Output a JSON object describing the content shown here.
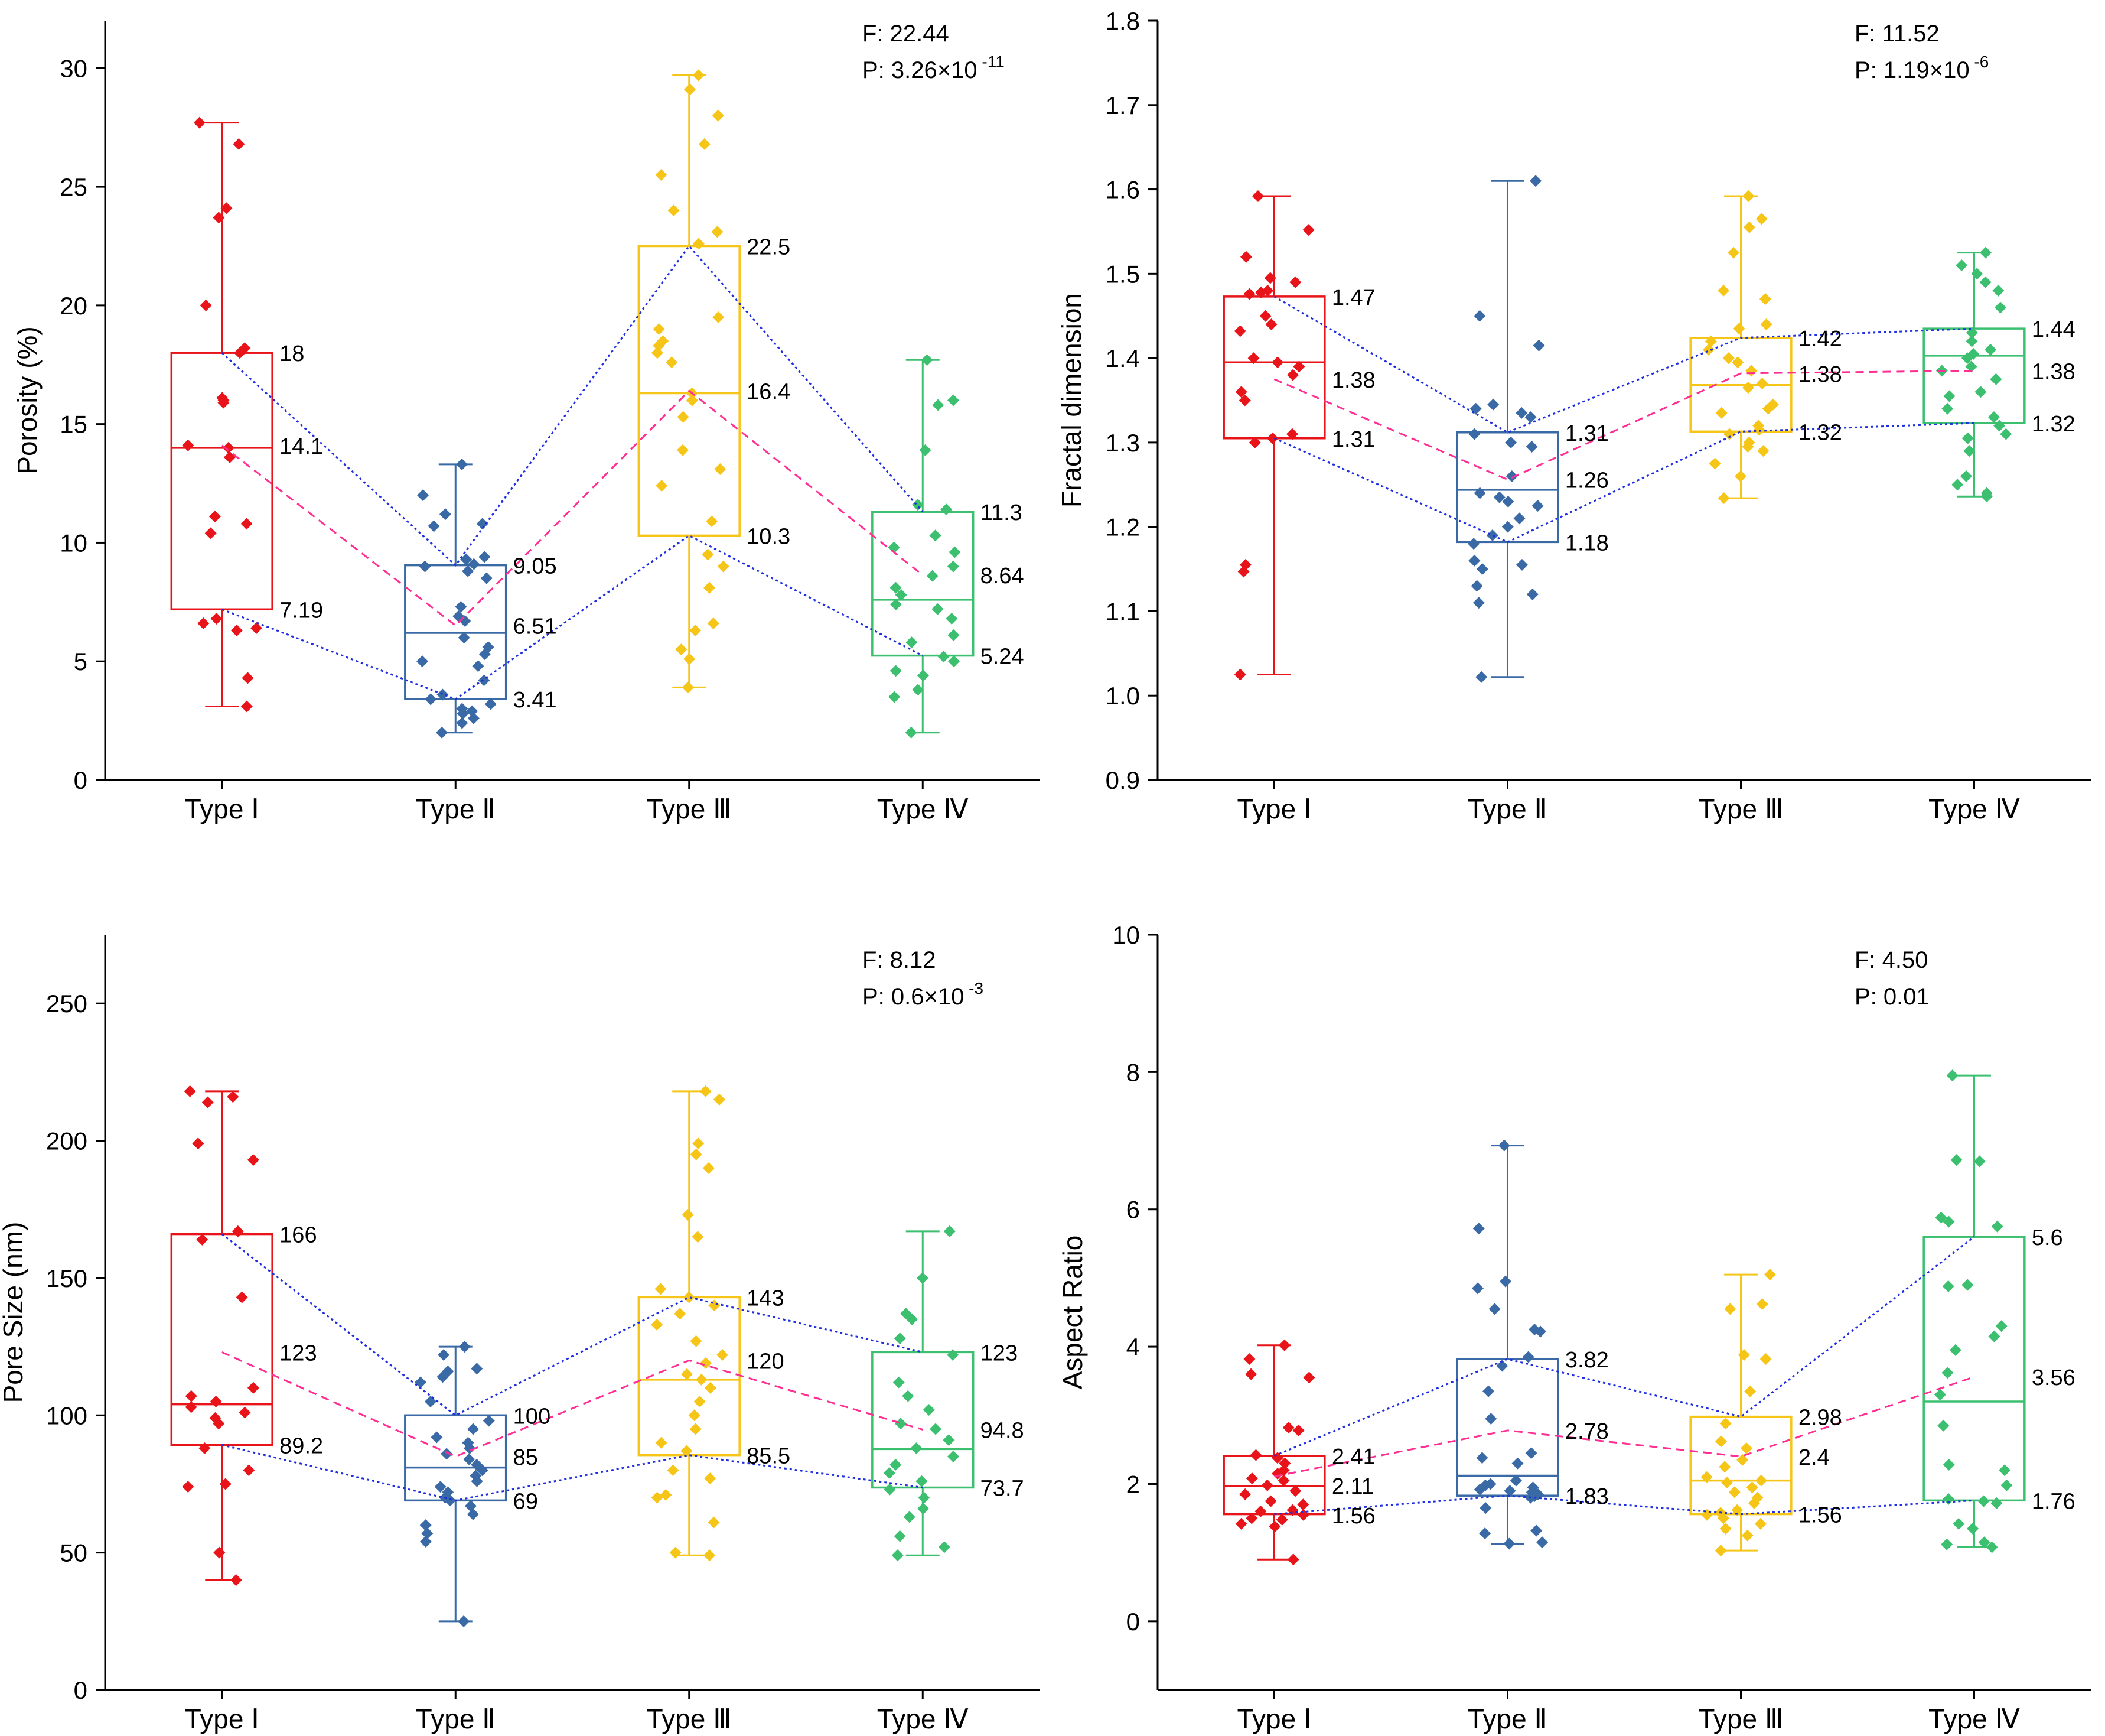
{
  "colors": {
    "type1": "#e8141a",
    "type2": "#3a6aa6",
    "type3": "#f5c518",
    "type4": "#3cc070",
    "quartile_line": "#1f2ee0",
    "mean_line": "#ff2e93"
  },
  "chart_data": [
    {
      "type": "box",
      "id": "porosity",
      "ylabel": "Porosity (%)",
      "categories": [
        "Type Ⅰ",
        "Type Ⅱ",
        "Type Ⅲ",
        "Type Ⅳ"
      ],
      "ylim": [
        0,
        32
      ],
      "yticks": [
        0,
        5,
        10,
        15,
        20,
        25,
        30
      ],
      "stats": {
        "f": "F: 22.44",
        "p_base": "P: 3.26×10",
        "p_exp": "-11"
      },
      "boxes": [
        {
          "q1": 7.19,
          "median": 14.0,
          "q3": 18.0,
          "mean": 14.1,
          "min": 3.1,
          "max": 27.7,
          "labels": {
            "q3": "18",
            "mean": "14.1",
            "q1": "7.19"
          },
          "points": [
            27.7,
            26.8,
            24.1,
            23.7,
            20.0,
            18.2,
            18.0,
            16.1,
            16.0,
            15.9,
            14.1,
            14.0,
            13.6,
            11.1,
            10.8,
            10.4,
            6.8,
            6.6,
            6.4,
            6.3,
            4.3,
            3.1
          ]
        },
        {
          "q1": 3.41,
          "median": 6.2,
          "q3": 9.05,
          "mean": 6.51,
          "min": 2.0,
          "max": 13.3,
          "labels": {
            "q3": "9.05",
            "mean": "6.51",
            "q1": "3.41"
          },
          "points": [
            13.3,
            12.0,
            11.2,
            10.8,
            10.7,
            9.4,
            9.3,
            9.1,
            9.0,
            8.8,
            8.5,
            7.3,
            6.9,
            6.7,
            6.0,
            5.6,
            5.3,
            5.0,
            4.8,
            4.2,
            3.6,
            3.4,
            3.2,
            3.0,
            2.9,
            2.8,
            2.6,
            2.4,
            2.0
          ]
        },
        {
          "q1": 10.3,
          "median": 16.3,
          "q3": 22.5,
          "mean": 16.4,
          "min": 3.9,
          "max": 29.7,
          "labels": {
            "q3": "22.5",
            "mean": "16.4",
            "q1": "10.3"
          },
          "points": [
            29.7,
            29.1,
            28.0,
            26.8,
            25.5,
            24.0,
            23.1,
            22.6,
            19.5,
            19.0,
            18.5,
            18.3,
            18.0,
            17.6,
            16.3,
            16.0,
            15.3,
            13.9,
            13.1,
            12.4,
            10.9,
            9.5,
            9.0,
            8.1,
            6.6,
            6.3,
            5.5,
            5.1,
            3.9
          ]
        },
        {
          "q1": 5.24,
          "median": 7.6,
          "q3": 11.3,
          "mean": 8.64,
          "min": 2.0,
          "max": 17.7,
          "labels": {
            "q3": "11.3",
            "mean": "8.64",
            "q1": "5.24"
          },
          "points": [
            17.7,
            16.0,
            15.8,
            13.9,
            11.6,
            11.4,
            10.3,
            9.8,
            9.6,
            9.0,
            8.6,
            8.1,
            7.8,
            7.4,
            7.2,
            6.8,
            6.1,
            5.8,
            5.2,
            5.0,
            4.6,
            4.4,
            3.8,
            3.5,
            2.0
          ]
        }
      ]
    },
    {
      "type": "box",
      "id": "fractal",
      "ylabel": "Fractal dimension",
      "categories": [
        "Type Ⅰ",
        "Type Ⅱ",
        "Type Ⅲ",
        "Type Ⅳ"
      ],
      "ylim": [
        0.9,
        1.8
      ],
      "yticks": [
        0.9,
        1.0,
        1.1,
        1.2,
        1.3,
        1.4,
        1.5,
        1.6,
        1.7,
        1.8
      ],
      "stats": {
        "f": "F: 11.52",
        "p_base": "P: 1.19×10",
        "p_exp": "-6"
      },
      "boxes": [
        {
          "q1": 1.305,
          "median": 1.395,
          "q3": 1.473,
          "mean": 1.375,
          "min": 1.025,
          "max": 1.592,
          "labels": {
            "q3": "1.47",
            "mean": "1.38",
            "q1": "1.31"
          },
          "points": [
            1.592,
            1.552,
            1.52,
            1.495,
            1.49,
            1.48,
            1.478,
            1.476,
            1.45,
            1.44,
            1.432,
            1.4,
            1.395,
            1.39,
            1.38,
            1.36,
            1.35,
            1.31,
            1.305,
            1.3,
            1.155,
            1.147,
            1.025
          ]
        },
        {
          "q1": 1.182,
          "median": 1.244,
          "q3": 1.312,
          "mean": 1.256,
          "min": 1.022,
          "max": 1.61,
          "labels": {
            "q3": "1.31",
            "mean": "1.26",
            "q1": "1.18"
          },
          "points": [
            1.61,
            1.45,
            1.415,
            1.345,
            1.34,
            1.335,
            1.33,
            1.31,
            1.3,
            1.295,
            1.26,
            1.24,
            1.235,
            1.23,
            1.225,
            1.21,
            1.2,
            1.19,
            1.18,
            1.16,
            1.155,
            1.15,
            1.13,
            1.12,
            1.11,
            1.022
          ]
        },
        {
          "q1": 1.313,
          "median": 1.368,
          "q3": 1.424,
          "mean": 1.382,
          "min": 1.234,
          "max": 1.592,
          "labels": {
            "q3": "1.42",
            "mean": "1.38",
            "q1": "1.32"
          },
          "points": [
            1.592,
            1.565,
            1.555,
            1.525,
            1.48,
            1.47,
            1.44,
            1.435,
            1.42,
            1.41,
            1.4,
            1.395,
            1.385,
            1.37,
            1.365,
            1.345,
            1.34,
            1.335,
            1.32,
            1.315,
            1.31,
            1.3,
            1.295,
            1.29,
            1.275,
            1.26,
            1.234
          ]
        },
        {
          "q1": 1.323,
          "median": 1.403,
          "q3": 1.435,
          "mean": 1.385,
          "min": 1.236,
          "max": 1.525,
          "labels": {
            "q3": "1.44",
            "mean": "1.38",
            "q1": "1.32"
          },
          "points": [
            1.525,
            1.51,
            1.5,
            1.49,
            1.48,
            1.46,
            1.43,
            1.42,
            1.41,
            1.405,
            1.4,
            1.39,
            1.385,
            1.375,
            1.36,
            1.355,
            1.34,
            1.33,
            1.32,
            1.31,
            1.305,
            1.29,
            1.26,
            1.25,
            1.24,
            1.236
          ]
        }
      ]
    },
    {
      "type": "box",
      "id": "pore_size",
      "ylabel": "Pore Size (nm)",
      "categories": [
        "Type Ⅰ",
        "Type Ⅱ",
        "Type Ⅲ",
        "Type Ⅳ"
      ],
      "ylim": [
        0,
        275
      ],
      "yticks": [
        0,
        50,
        100,
        150,
        200,
        250
      ],
      "stats": {
        "f": "F: 8.12",
        "p_base": "P: 0.6×10",
        "p_exp": "-3"
      },
      "boxes": [
        {
          "q1": 89.2,
          "median": 104,
          "q3": 166,
          "mean": 123,
          "min": 40,
          "max": 218,
          "labels": {
            "q3": "166",
            "mean": "123",
            "q1": "89.2"
          },
          "points": [
            218,
            216,
            214,
            199,
            193,
            167,
            164,
            143,
            110,
            107,
            105,
            103,
            101,
            99,
            97,
            88,
            80,
            75,
            74,
            50,
            40
          ]
        },
        {
          "q1": 69,
          "median": 81,
          "q3": 100,
          "mean": 85,
          "min": 25,
          "max": 125,
          "labels": {
            "q3": "100",
            "mean": "85",
            "q1": "69"
          },
          "points": [
            125,
            122,
            117,
            116,
            114,
            112,
            105,
            98,
            95,
            92,
            90,
            88,
            86,
            84,
            82,
            80,
            78,
            76,
            74,
            72,
            70,
            69,
            67,
            64,
            60,
            57,
            54,
            25
          ]
        },
        {
          "q1": 85.5,
          "median": 113,
          "q3": 143,
          "mean": 120,
          "min": 49,
          "max": 218,
          "labels": {
            "q3": "143",
            "mean": "120",
            "q1": "85.5"
          },
          "points": [
            218,
            215,
            199,
            195,
            190,
            173,
            165,
            146,
            143,
            140,
            137,
            133,
            127,
            122,
            119,
            115,
            113,
            110,
            105,
            100,
            95,
            90,
            87,
            80,
            77,
            71,
            70,
            61,
            50,
            49
          ]
        },
        {
          "q1": 73.7,
          "median": 87.7,
          "q3": 123,
          "mean": 94.8,
          "min": 49,
          "max": 167,
          "labels": {
            "q3": "123",
            "mean": "94.8",
            "q1": "73.7"
          },
          "points": [
            167,
            150,
            137,
            135,
            128,
            122,
            112,
            107,
            102,
            97,
            95,
            91,
            88,
            85,
            82,
            79,
            76,
            73,
            70,
            66,
            63,
            56,
            52,
            49
          ]
        }
      ]
    },
    {
      "type": "box",
      "id": "aspect_ratio",
      "ylabel": "Aspect Ratio",
      "categories": [
        "Type Ⅰ",
        "Type Ⅱ",
        "Type Ⅲ",
        "Type Ⅳ"
      ],
      "ylim": [
        -1,
        10
      ],
      "yticks": [
        0,
        2,
        4,
        6,
        8,
        10
      ],
      "stats": {
        "f": "F: 4.50",
        "p_base": "P: 0.01",
        "p_exp": ""
      },
      "boxes": [
        {
          "q1": 1.56,
          "median": 1.97,
          "q3": 2.41,
          "mean": 2.11,
          "min": 0.9,
          "max": 4.02,
          "labels": {
            "q3": "2.41",
            "mean": "2.11",
            "q1": "1.56"
          },
          "points": [
            4.02,
            3.82,
            3.6,
            3.55,
            2.82,
            2.78,
            2.42,
            2.38,
            2.3,
            2.2,
            2.15,
            2.08,
            2.05,
            1.98,
            1.9,
            1.85,
            1.75,
            1.7,
            1.62,
            1.6,
            1.55,
            1.5,
            1.48,
            1.42,
            1.38,
            0.9
          ]
        },
        {
          "q1": 1.83,
          "median": 2.12,
          "q3": 3.82,
          "mean": 2.78,
          "min": 1.13,
          "max": 6.93,
          "labels": {
            "q3": "3.82",
            "mean": "2.78",
            "q1": "1.83"
          },
          "points": [
            6.93,
            5.72,
            4.95,
            4.85,
            4.55,
            4.25,
            4.22,
            3.85,
            3.72,
            3.35,
            2.95,
            2.45,
            2.38,
            2.3,
            2.05,
            2.0,
            1.98,
            1.95,
            1.92,
            1.9,
            1.88,
            1.85,
            1.82,
            1.8,
            1.65,
            1.32,
            1.28,
            1.15,
            1.13
          ]
        },
        {
          "q1": 1.56,
          "median": 2.05,
          "q3": 2.98,
          "mean": 2.4,
          "min": 1.03,
          "max": 5.05,
          "labels": {
            "q3": "2.98",
            "mean": "2.4",
            "q1": "1.56"
          },
          "points": [
            5.05,
            4.62,
            4.55,
            3.88,
            3.82,
            3.35,
            2.88,
            2.62,
            2.52,
            2.35,
            2.25,
            2.1,
            2.05,
            2.02,
            1.95,
            1.88,
            1.8,
            1.72,
            1.62,
            1.58,
            1.55,
            1.5,
            1.42,
            1.35,
            1.25,
            1.03
          ]
        },
        {
          "q1": 1.76,
          "median": 3.2,
          "q3": 5.6,
          "mean": 3.56,
          "min": 1.08,
          "max": 7.95,
          "labels": {
            "q3": "5.6",
            "mean": "3.56",
            "q1": "1.76"
          },
          "points": [
            7.95,
            6.72,
            6.7,
            5.88,
            5.82,
            5.75,
            4.9,
            4.88,
            4.3,
            4.15,
            3.95,
            3.62,
            3.3,
            2.85,
            2.28,
            2.2,
            1.98,
            1.78,
            1.75,
            1.72,
            1.42,
            1.35,
            1.15,
            1.12,
            1.08
          ]
        }
      ]
    }
  ]
}
